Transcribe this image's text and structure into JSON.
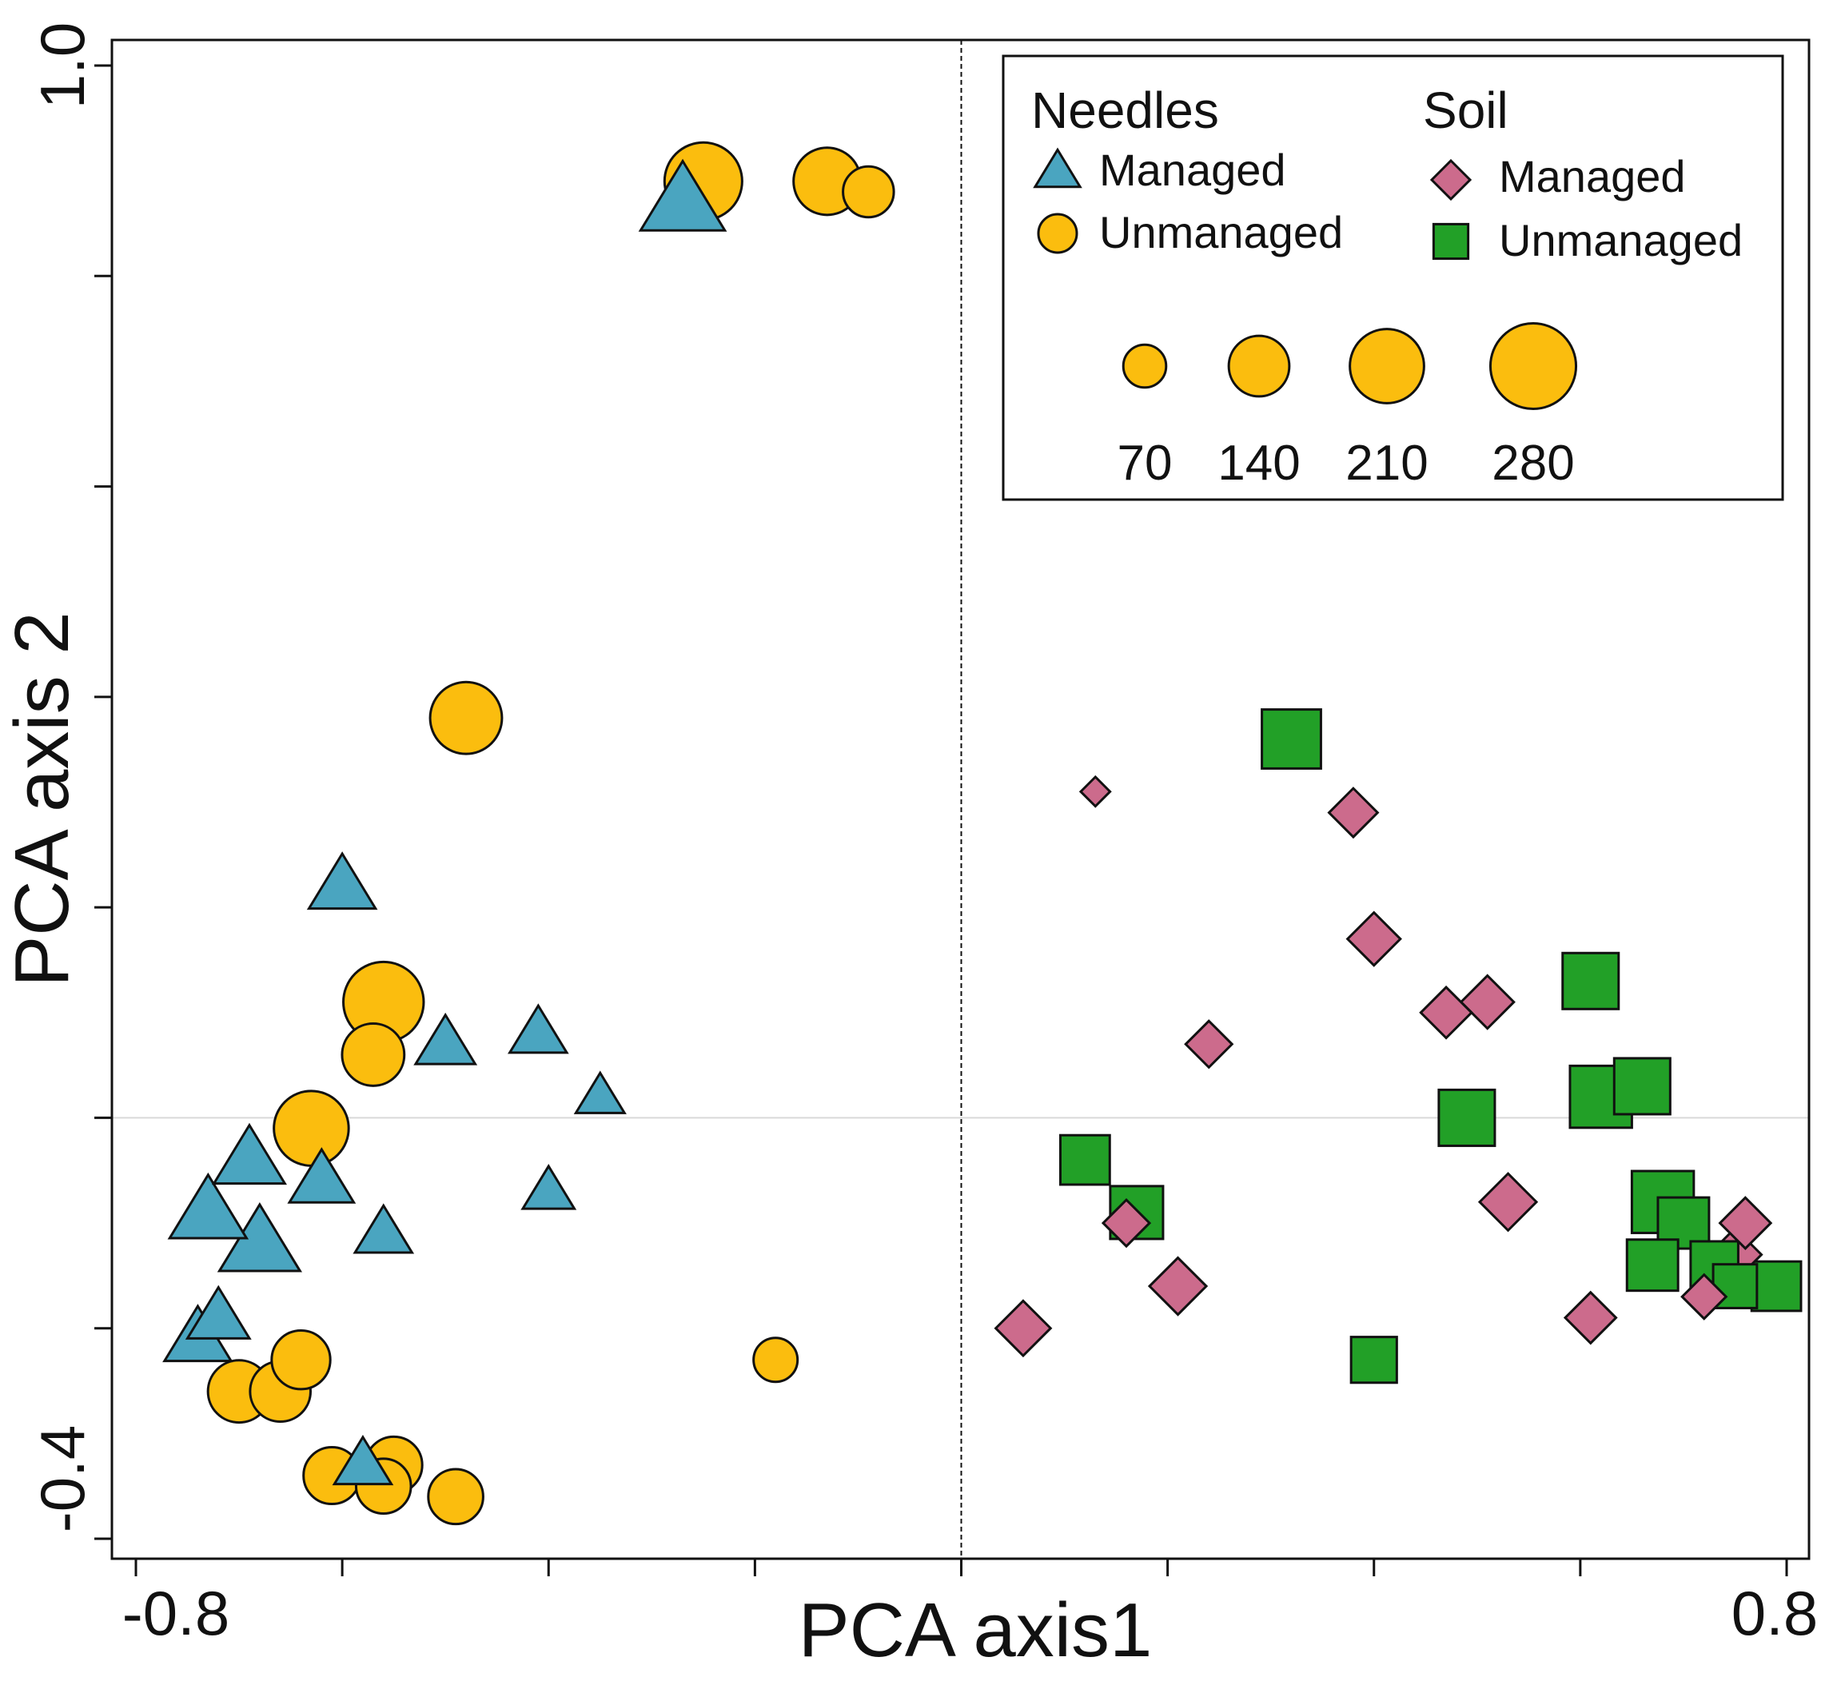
{
  "chart_data": {
    "type": "scatter",
    "xlabel": "PCA axis1",
    "ylabel": "PCA axis 2",
    "xlim": [
      -0.8,
      0.8
    ],
    "ylim": [
      -0.4,
      1.0
    ],
    "x_tick_labels": [
      "-0.8",
      "0.8"
    ],
    "y_tick_labels": [
      "1.0",
      "-0.4"
    ],
    "zero_lines": true,
    "colors": {
      "needles_managed": "#4aa5c0",
      "needles_unmanaged": "#fbbd0e",
      "soil_managed": "#cc6b8c",
      "soil_unmanaged": "#22a027"
    },
    "legend": {
      "position": "top-right",
      "groups": [
        {
          "title": "Needles",
          "items": [
            {
              "label": "Managed",
              "shape": "triangle",
              "series": "needles_managed"
            },
            {
              "label": "Unmanaged",
              "shape": "circle",
              "series": "needles_unmanaged"
            }
          ]
        },
        {
          "title": "Soil",
          "items": [
            {
              "label": "Managed",
              "shape": "diamond",
              "series": "soil_managed"
            },
            {
              "label": "Unmanaged",
              "shape": "square",
              "series": "soil_unmanaged"
            }
          ]
        }
      ],
      "size_legend": [
        {
          "label": "70",
          "value": 70
        },
        {
          "label": "140",
          "value": 140
        },
        {
          "label": "210",
          "value": 210
        },
        {
          "label": "280",
          "value": 280
        }
      ]
    },
    "series": [
      {
        "name": "Needles Managed",
        "key": "needles_managed",
        "shape": "triangle",
        "points": [
          {
            "x": -0.27,
            "y": 0.87,
            "size": 240
          },
          {
            "x": -0.6,
            "y": 0.22,
            "size": 150
          },
          {
            "x": -0.5,
            "y": 0.07,
            "size": 120
          },
          {
            "x": -0.41,
            "y": 0.08,
            "size": 110
          },
          {
            "x": -0.35,
            "y": 0.02,
            "size": 80
          },
          {
            "x": -0.69,
            "y": -0.04,
            "size": 170
          },
          {
            "x": -0.62,
            "y": -0.06,
            "size": 140
          },
          {
            "x": -0.4,
            "y": -0.07,
            "size": 90
          },
          {
            "x": -0.73,
            "y": -0.09,
            "size": 200
          },
          {
            "x": -0.56,
            "y": -0.11,
            "size": 110
          },
          {
            "x": -0.68,
            "y": -0.12,
            "size": 220
          },
          {
            "x": -0.72,
            "y": -0.19,
            "size": 130
          },
          {
            "x": -0.74,
            "y": -0.21,
            "size": 150
          },
          {
            "x": -0.58,
            "y": -0.33,
            "size": 110
          }
        ]
      },
      {
        "name": "Needles Unmanaged",
        "key": "needles_unmanaged",
        "shape": "circle",
        "points": [
          {
            "x": -0.25,
            "y": 0.89,
            "size": 280
          },
          {
            "x": -0.13,
            "y": 0.89,
            "size": 210
          },
          {
            "x": -0.09,
            "y": 0.88,
            "size": 120
          },
          {
            "x": -0.48,
            "y": 0.38,
            "size": 240
          },
          {
            "x": -0.56,
            "y": 0.11,
            "size": 300
          },
          {
            "x": -0.57,
            "y": 0.06,
            "size": 180
          },
          {
            "x": -0.63,
            "y": -0.01,
            "size": 260
          },
          {
            "x": -0.64,
            "y": -0.23,
            "size": 160
          },
          {
            "x": -0.66,
            "y": -0.26,
            "size": 170
          },
          {
            "x": -0.7,
            "y": -0.26,
            "size": 180
          },
          {
            "x": -0.18,
            "y": -0.23,
            "size": 90
          },
          {
            "x": -0.55,
            "y": -0.33,
            "size": 150
          },
          {
            "x": -0.56,
            "y": -0.35,
            "size": 140
          },
          {
            "x": -0.61,
            "y": -0.34,
            "size": 150
          },
          {
            "x": -0.49,
            "y": -0.36,
            "size": 140
          }
        ]
      },
      {
        "name": "Soil Managed",
        "key": "soil_managed",
        "shape": "diamond",
        "points": [
          {
            "x": 0.13,
            "y": 0.31,
            "size": 40
          },
          {
            "x": 0.38,
            "y": 0.29,
            "size": 110
          },
          {
            "x": 0.4,
            "y": 0.17,
            "size": 130
          },
          {
            "x": 0.47,
            "y": 0.1,
            "size": 120
          },
          {
            "x": 0.51,
            "y": 0.11,
            "size": 130
          },
          {
            "x": 0.24,
            "y": 0.07,
            "size": 100
          },
          {
            "x": 0.53,
            "y": -0.08,
            "size": 150
          },
          {
            "x": 0.16,
            "y": -0.1,
            "size": 100
          },
          {
            "x": 0.21,
            "y": -0.16,
            "size": 150
          },
          {
            "x": 0.06,
            "y": -0.2,
            "size": 140
          },
          {
            "x": 0.61,
            "y": -0.19,
            "size": 120
          },
          {
            "x": 0.76,
            "y": -0.1,
            "size": 120
          },
          {
            "x": 0.75,
            "y": -0.13,
            "size": 130
          },
          {
            "x": 0.72,
            "y": -0.17,
            "size": 90
          }
        ]
      },
      {
        "name": "Soil Unmanaged",
        "key": "soil_unmanaged",
        "shape": "square",
        "points": [
          {
            "x": 0.32,
            "y": 0.36,
            "size": 200
          },
          {
            "x": 0.61,
            "y": 0.13,
            "size": 180
          },
          {
            "x": 0.66,
            "y": 0.03,
            "size": 180
          },
          {
            "x": 0.62,
            "y": 0.02,
            "size": 220
          },
          {
            "x": 0.49,
            "y": 0.0,
            "size": 180
          },
          {
            "x": 0.12,
            "y": -0.04,
            "size": 140
          },
          {
            "x": 0.68,
            "y": -0.08,
            "size": 220
          },
          {
            "x": 0.7,
            "y": -0.1,
            "size": 150
          },
          {
            "x": 0.17,
            "y": -0.09,
            "size": 160
          },
          {
            "x": 0.67,
            "y": -0.14,
            "size": 150
          },
          {
            "x": 0.73,
            "y": -0.14,
            "size": 130
          },
          {
            "x": 0.75,
            "y": -0.16,
            "size": 110
          },
          {
            "x": 0.79,
            "y": -0.16,
            "size": 140
          },
          {
            "x": 0.4,
            "y": -0.23,
            "size": 120
          }
        ]
      }
    ]
  }
}
